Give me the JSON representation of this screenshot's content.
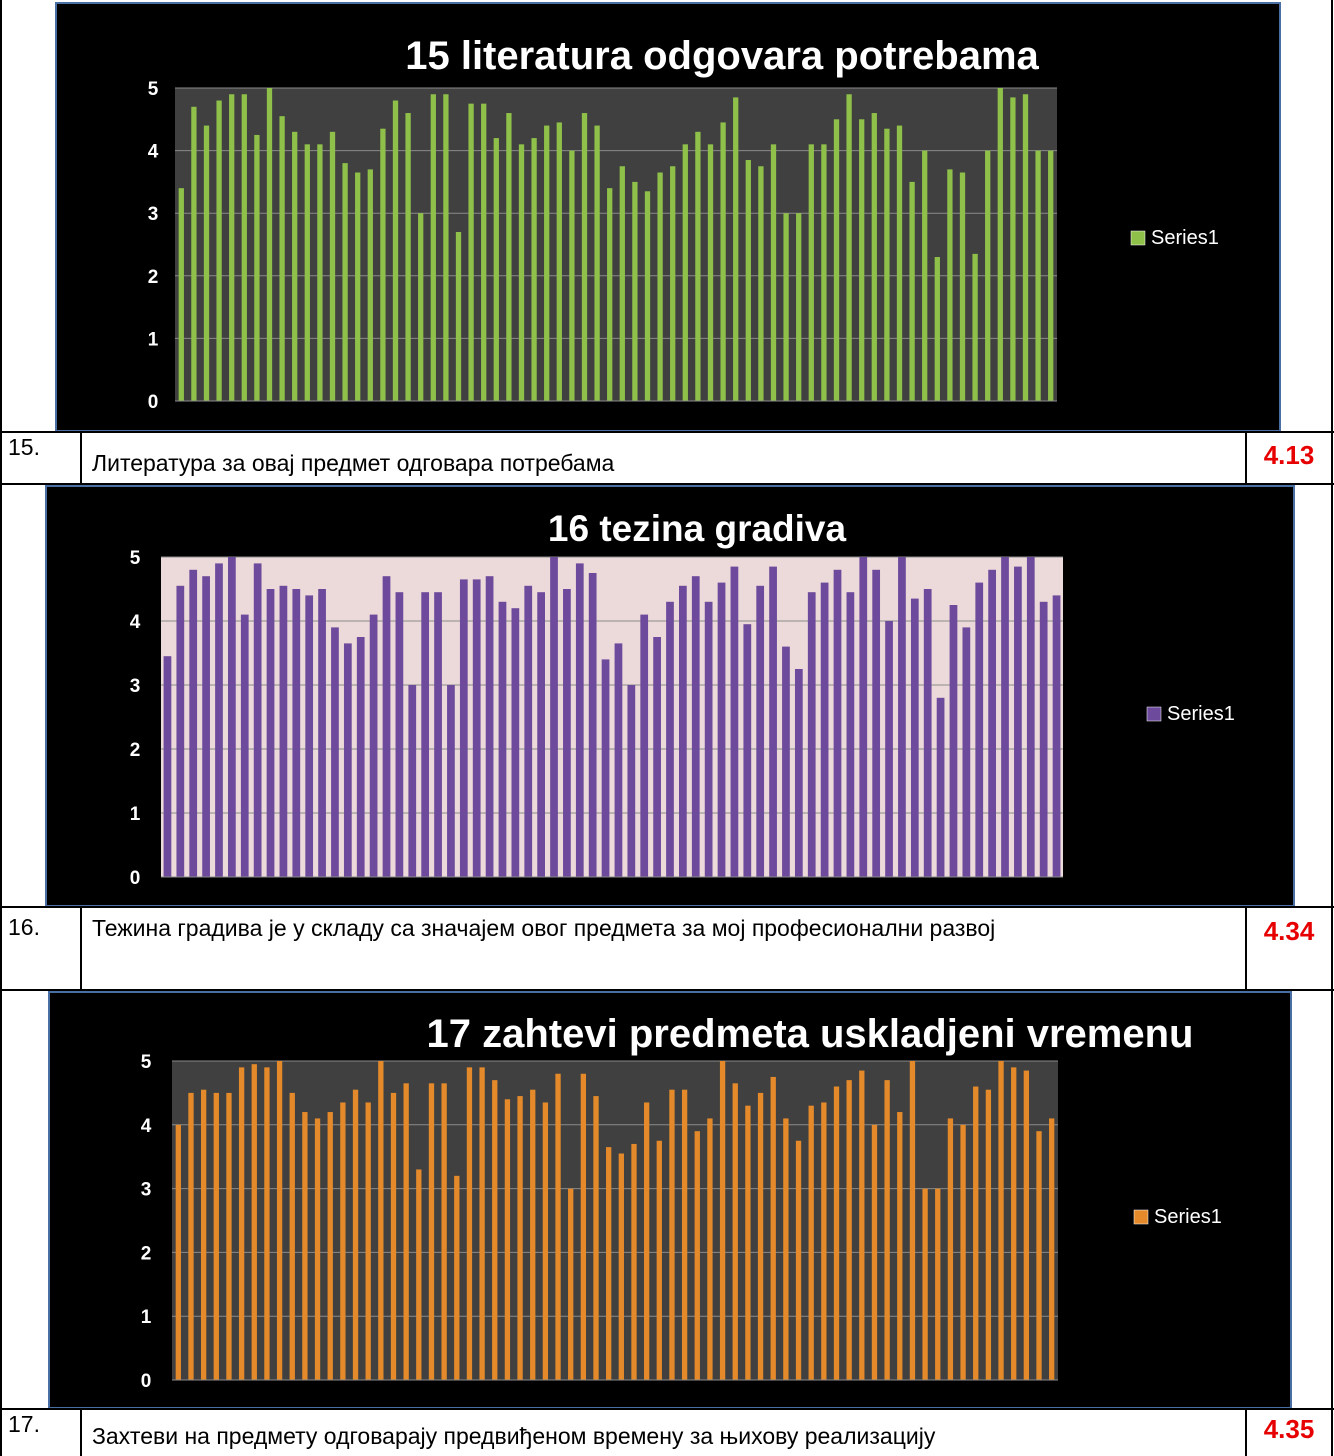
{
  "rows": [
    {
      "num": "15.",
      "text": "Литература за овај предмет одговара потребама",
      "score": "4.13"
    },
    {
      "num": "16.",
      "text": "Тежина градива је у складу са значајем овог предмета за мој професионални развој",
      "score": "4.34"
    },
    {
      "num": "17.",
      "text": "Захтеви на предмету одговарају предвиђеном времену за њихову реализацију",
      "score": "4.35"
    }
  ],
  "chart_data": [
    {
      "type": "bar",
      "title": "15 literatura odgovara potrebama",
      "legend": [
        "Series1"
      ],
      "legend_position": "right",
      "ylim": [
        0,
        5
      ],
      "yticks": [
        "0",
        "1",
        "2",
        "3",
        "4",
        "5"
      ],
      "grid": true,
      "bar_color": "#8fc04a",
      "plot_bg": "#404040",
      "series": [
        {
          "name": "Series1",
          "values": [
            3.4,
            4.7,
            4.4,
            4.8,
            4.9,
            4.9,
            4.25,
            5.0,
            4.55,
            4.3,
            4.1,
            4.1,
            4.3,
            3.8,
            3.65,
            3.7,
            4.35,
            4.8,
            4.6,
            3.0,
            4.9,
            4.9,
            2.7,
            4.75,
            4.75,
            4.2,
            4.6,
            4.1,
            4.2,
            4.4,
            4.45,
            4.0,
            4.6,
            4.4,
            3.4,
            3.75,
            3.5,
            3.35,
            3.65,
            3.75,
            4.1,
            4.3,
            4.1,
            4.45,
            4.85,
            3.85,
            3.75,
            4.1,
            3.0,
            3.0,
            4.1,
            4.1,
            4.5,
            4.9,
            4.5,
            4.6,
            4.35,
            4.4,
            3.5,
            4.0,
            2.3,
            3.7,
            3.65,
            2.35,
            4.0,
            5.0,
            4.85,
            4.9,
            4.0,
            4.0
          ]
        }
      ]
    },
    {
      "type": "bar",
      "title": "16 tezina gradiva",
      "legend": [
        "Series1"
      ],
      "legend_position": "right",
      "ylim": [
        0,
        5
      ],
      "yticks": [
        "0",
        "1",
        "2",
        "3",
        "4",
        "5"
      ],
      "grid": true,
      "bar_color": "#6e4a9c",
      "plot_bg": "#ecd9d9",
      "series": [
        {
          "name": "Series1",
          "values": [
            3.45,
            4.55,
            4.8,
            4.7,
            4.9,
            5.0,
            4.1,
            4.9,
            4.5,
            4.55,
            4.5,
            4.4,
            4.5,
            3.9,
            3.65,
            3.75,
            4.1,
            4.7,
            4.45,
            3.0,
            4.45,
            4.45,
            3.0,
            4.65,
            4.65,
            4.7,
            4.3,
            4.2,
            4.55,
            4.45,
            5.0,
            4.5,
            4.9,
            4.75,
            3.4,
            3.65,
            3.0,
            4.1,
            3.75,
            4.3,
            4.55,
            4.7,
            4.3,
            4.6,
            4.85,
            3.95,
            4.55,
            4.85,
            3.6,
            3.25,
            4.45,
            4.6,
            4.8,
            4.45,
            5.0,
            4.8,
            4.0,
            5.0,
            4.35,
            4.5,
            2.8,
            4.25,
            3.9,
            4.6,
            4.8,
            5.0,
            4.85,
            5.0,
            4.3,
            4.4
          ]
        }
      ]
    },
    {
      "type": "bar",
      "title": "17 zahtevi predmeta uskladjeni vremenu",
      "legend": [
        "Series1"
      ],
      "legend_position": "right",
      "ylim": [
        0,
        5
      ],
      "yticks": [
        "0",
        "1",
        "2",
        "3",
        "4",
        "5"
      ],
      "grid": true,
      "bar_color": "#e48a2a",
      "plot_bg": "#404040",
      "series": [
        {
          "name": "Series1",
          "values": [
            4.0,
            4.5,
            4.55,
            4.5,
            4.5,
            4.9,
            4.95,
            4.9,
            5.0,
            4.5,
            4.2,
            4.1,
            4.2,
            4.35,
            4.55,
            4.35,
            5.0,
            4.5,
            4.65,
            3.3,
            4.65,
            4.65,
            3.2,
            4.9,
            4.9,
            4.7,
            4.4,
            4.45,
            4.55,
            4.35,
            4.8,
            3.0,
            4.8,
            4.45,
            3.65,
            3.55,
            3.7,
            4.35,
            3.75,
            4.55,
            4.55,
            3.9,
            4.1,
            5.0,
            4.65,
            4.3,
            4.5,
            4.75,
            4.1,
            3.75,
            4.3,
            4.35,
            4.6,
            4.7,
            4.85,
            4.0,
            4.7,
            4.2,
            5.0,
            3.0,
            3.0,
            4.1,
            4.0,
            4.6,
            4.55,
            5.0,
            4.9,
            4.85,
            3.9,
            4.1
          ]
        }
      ]
    }
  ]
}
